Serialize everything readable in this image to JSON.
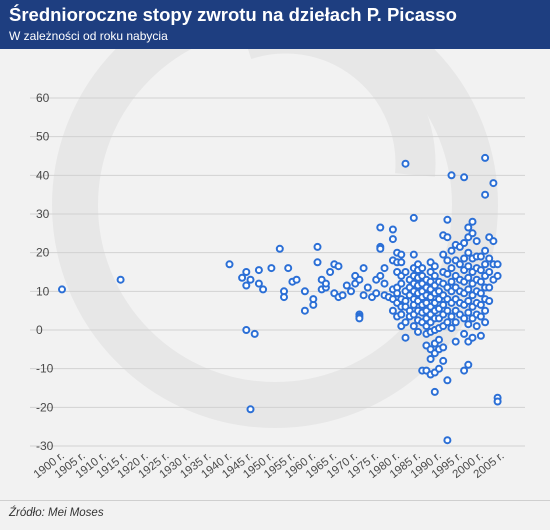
{
  "title": "Średnioroczne stopy zwrotu na dziełach P. Picasso",
  "subtitle": "W zależności od roku nabycia",
  "source": "Źródło: Mei Moses",
  "colors": {
    "header": "#1e3e80",
    "marker": "#2b6fd6",
    "grid": "#d2d2d2",
    "axis_text": "#4a4a4a",
    "watermark": "#e7e7e7"
  },
  "chart_data": {
    "type": "scatter",
    "title": "",
    "xlabel": "",
    "ylabel": "",
    "xlim": [
      1900,
      2006
    ],
    "ylim": [
      -30,
      60
    ],
    "yticks": [
      60,
      50,
      40,
      30,
      20,
      10,
      0,
      -10,
      -20,
      -30
    ],
    "xtick_labels": [
      "1900 r.",
      "1905 r.",
      "1910 r.",
      "1915 r.",
      "1920 r.",
      "1925 r.",
      "1930 r.",
      "1935 r.",
      "1940 r.",
      "1945 r.",
      "1950 r.",
      "1955 r.",
      "1960 r.",
      "1965 r.",
      "1970 r.",
      "1975 r.",
      "1980 r.",
      "1985 r.",
      "1990 r.",
      "1995 r.",
      "2000 r.",
      "2005 r."
    ],
    "xtick_values": [
      1900,
      1905,
      1910,
      1915,
      1920,
      1925,
      1930,
      1935,
      1940,
      1945,
      1950,
      1955,
      1960,
      1965,
      1970,
      1975,
      1980,
      1985,
      1990,
      1995,
      2000,
      2005
    ],
    "grid": "horizontal",
    "points": [
      [
        1900,
        10.5
      ],
      [
        1914,
        13
      ],
      [
        1940,
        17
      ],
      [
        1943,
        13.5
      ],
      [
        1944,
        15
      ],
      [
        1944,
        11.5
      ],
      [
        1944,
        0
      ],
      [
        1945,
        13
      ],
      [
        1945,
        -20.5
      ],
      [
        1946,
        -1
      ],
      [
        1947,
        12
      ],
      [
        1947,
        15.5
      ],
      [
        1948,
        10.5
      ],
      [
        1950,
        16
      ],
      [
        1952,
        21
      ],
      [
        1953,
        10
      ],
      [
        1953,
        8.5
      ],
      [
        1954,
        16
      ],
      [
        1955,
        12.5
      ],
      [
        1956,
        13
      ],
      [
        1958,
        10
      ],
      [
        1958,
        5
      ],
      [
        1960,
        6.5
      ],
      [
        1960,
        8
      ],
      [
        1961,
        21.5
      ],
      [
        1961,
        17.5
      ],
      [
        1962,
        13
      ],
      [
        1962,
        10.5
      ],
      [
        1963,
        11
      ],
      [
        1963,
        12
      ],
      [
        1964,
        15
      ],
      [
        1965,
        9.5
      ],
      [
        1965,
        17
      ],
      [
        1966,
        16.5
      ],
      [
        1966,
        8.5
      ],
      [
        1967,
        9
      ],
      [
        1968,
        11.5
      ],
      [
        1969,
        10
      ],
      [
        1970,
        12
      ],
      [
        1970,
        14
      ],
      [
        1971,
        13
      ],
      [
        1971,
        4
      ],
      [
        1971,
        3.5
      ],
      [
        1971,
        3
      ],
      [
        1972,
        16
      ],
      [
        1972,
        9
      ],
      [
        1973,
        11
      ],
      [
        1974,
        8.5
      ],
      [
        1975,
        13
      ],
      [
        1975,
        9.5
      ],
      [
        1976,
        21.5
      ],
      [
        1976,
        21
      ],
      [
        1976,
        26.5
      ],
      [
        1976,
        14
      ],
      [
        1977,
        12
      ],
      [
        1977,
        16
      ],
      [
        1977,
        9
      ],
      [
        1978,
        8.5
      ],
      [
        1979,
        26
      ],
      [
        1979,
        23.5
      ],
      [
        1979,
        18
      ],
      [
        1979,
        10.5
      ],
      [
        1979,
        8
      ],
      [
        1979,
        5
      ],
      [
        1980,
        20
      ],
      [
        1980,
        17.5
      ],
      [
        1980,
        15
      ],
      [
        1980,
        11
      ],
      [
        1980,
        9.5
      ],
      [
        1980,
        7
      ],
      [
        1980,
        3.5
      ],
      [
        1981,
        19.5
      ],
      [
        1981,
        17.5
      ],
      [
        1981,
        14
      ],
      [
        1981,
        12
      ],
      [
        1981,
        8
      ],
      [
        1981,
        6
      ],
      [
        1981,
        4
      ],
      [
        1981,
        1
      ],
      [
        1982,
        43
      ],
      [
        1982,
        15
      ],
      [
        1982,
        10
      ],
      [
        1982,
        7.5
      ],
      [
        1982,
        6
      ],
      [
        1982,
        -2
      ],
      [
        1982,
        2
      ],
      [
        1983,
        13
      ],
      [
        1983,
        11
      ],
      [
        1983,
        9
      ],
      [
        1983,
        5
      ],
      [
        1983,
        3.5
      ],
      [
        1984,
        29
      ],
      [
        1984,
        19.5
      ],
      [
        1984,
        16
      ],
      [
        1984,
        14
      ],
      [
        1984,
        12
      ],
      [
        1984,
        10
      ],
      [
        1984,
        8
      ],
      [
        1984,
        6.5
      ],
      [
        1984,
        4
      ],
      [
        1984,
        1
      ],
      [
        1985,
        17
      ],
      [
        1985,
        15.5
      ],
      [
        1985,
        13.5
      ],
      [
        1985,
        11.5
      ],
      [
        1985,
        9.5
      ],
      [
        1985,
        7.5
      ],
      [
        1985,
        5
      ],
      [
        1985,
        2.5
      ],
      [
        1985,
        -0.5
      ],
      [
        1986,
        16
      ],
      [
        1986,
        14
      ],
      [
        1986,
        12
      ],
      [
        1986,
        10
      ],
      [
        1986,
        8.5
      ],
      [
        1986,
        6.5
      ],
      [
        1986,
        4.5
      ],
      [
        1986,
        2
      ],
      [
        1986,
        -10.5
      ],
      [
        1987,
        13
      ],
      [
        1987,
        11
      ],
      [
        1987,
        9
      ],
      [
        1987,
        7
      ],
      [
        1987,
        5
      ],
      [
        1987,
        3
      ],
      [
        1987,
        1
      ],
      [
        1987,
        -1
      ],
      [
        1987,
        -4
      ],
      [
        1987,
        -10.5
      ],
      [
        1988,
        17.5
      ],
      [
        1988,
        15
      ],
      [
        1988,
        12.5
      ],
      [
        1988,
        10.5
      ],
      [
        1988,
        8.5
      ],
      [
        1988,
        6
      ],
      [
        1988,
        4
      ],
      [
        1988,
        2
      ],
      [
        1988,
        -0.5
      ],
      [
        1988,
        -5
      ],
      [
        1988,
        -7.5
      ],
      [
        1988,
        -11.5
      ],
      [
        1989,
        16.5
      ],
      [
        1989,
        14
      ],
      [
        1989,
        11.5
      ],
      [
        1989,
        9.5
      ],
      [
        1989,
        7
      ],
      [
        1989,
        5
      ],
      [
        1989,
        3
      ],
      [
        1989,
        0
      ],
      [
        1989,
        -3.5
      ],
      [
        1989,
        -6
      ],
      [
        1989,
        -11
      ],
      [
        1989,
        -16
      ],
      [
        1990,
        12.5
      ],
      [
        1990,
        10
      ],
      [
        1990,
        8
      ],
      [
        1990,
        5.5
      ],
      [
        1990,
        3
      ],
      [
        1990,
        0.5
      ],
      [
        1990,
        -2.5
      ],
      [
        1990,
        -5
      ],
      [
        1990,
        -10
      ],
      [
        1991,
        24.5
      ],
      [
        1991,
        19.5
      ],
      [
        1991,
        15
      ],
      [
        1991,
        12
      ],
      [
        1991,
        9
      ],
      [
        1991,
        6.5
      ],
      [
        1991,
        4
      ],
      [
        1991,
        1
      ],
      [
        1991,
        -4.5
      ],
      [
        1991,
        -8
      ],
      [
        1992,
        28.5
      ],
      [
        1992,
        24
      ],
      [
        1992,
        18
      ],
      [
        1992,
        14.5
      ],
      [
        1992,
        11
      ],
      [
        1992,
        8
      ],
      [
        1992,
        5
      ],
      [
        1992,
        2
      ],
      [
        1992,
        -13
      ],
      [
        1992,
        -28.5
      ],
      [
        1993,
        40
      ],
      [
        1993,
        20.5
      ],
      [
        1993,
        16
      ],
      [
        1993,
        12.5
      ],
      [
        1993,
        10
      ],
      [
        1993,
        7
      ],
      [
        1993,
        3.5
      ],
      [
        1993,
        0.5
      ],
      [
        1994,
        22
      ],
      [
        1994,
        18
      ],
      [
        1994,
        14
      ],
      [
        1994,
        11
      ],
      [
        1994,
        8
      ],
      [
        1994,
        5
      ],
      [
        1994,
        2
      ],
      [
        1994,
        -3
      ],
      [
        1995,
        21.5
      ],
      [
        1995,
        17
      ],
      [
        1995,
        13
      ],
      [
        1995,
        10
      ],
      [
        1995,
        7
      ],
      [
        1995,
        4
      ],
      [
        1996,
        39.5
      ],
      [
        1996,
        22.5
      ],
      [
        1996,
        18.5
      ],
      [
        1996,
        15.5
      ],
      [
        1996,
        12.5
      ],
      [
        1996,
        9.5
      ],
      [
        1996,
        6.5
      ],
      [
        1996,
        3
      ],
      [
        1996,
        -1
      ],
      [
        1996,
        -10.5
      ],
      [
        1997,
        26.5
      ],
      [
        1997,
        24
      ],
      [
        1997,
        20
      ],
      [
        1997,
        16.5
      ],
      [
        1997,
        13.5
      ],
      [
        1997,
        10.5
      ],
      [
        1997,
        7.5
      ],
      [
        1997,
        4.5
      ],
      [
        1997,
        1.5
      ],
      [
        1997,
        -3
      ],
      [
        1997,
        -9
      ],
      [
        1998,
        28
      ],
      [
        1998,
        25
      ],
      [
        1998,
        18.5
      ],
      [
        1998,
        15
      ],
      [
        1998,
        12
      ],
      [
        1998,
        9
      ],
      [
        1998,
        6
      ],
      [
        1998,
        3
      ],
      [
        1998,
        -2
      ],
      [
        1999,
        23
      ],
      [
        1999,
        19
      ],
      [
        1999,
        16
      ],
      [
        1999,
        13
      ],
      [
        1999,
        10
      ],
      [
        1999,
        7
      ],
      [
        1999,
        4
      ],
      [
        1999,
        1
      ],
      [
        2000,
        19
      ],
      [
        2000,
        15.5
      ],
      [
        2000,
        12.5
      ],
      [
        2000,
        9.5
      ],
      [
        2000,
        6.5
      ],
      [
        2000,
        3.5
      ],
      [
        2000,
        -1.5
      ],
      [
        2001,
        44.5
      ],
      [
        2001,
        35
      ],
      [
        2001,
        20.5
      ],
      [
        2001,
        17
      ],
      [
        2001,
        14
      ],
      [
        2001,
        11
      ],
      [
        2001,
        8
      ],
      [
        2001,
        5
      ],
      [
        2001,
        2
      ],
      [
        2002,
        24
      ],
      [
        2002,
        18.5
      ],
      [
        2002,
        15
      ],
      [
        2002,
        11
      ],
      [
        2002,
        7.5
      ],
      [
        2003,
        38
      ],
      [
        2003,
        23
      ],
      [
        2003,
        17
      ],
      [
        2003,
        13
      ],
      [
        2004,
        17
      ],
      [
        2004,
        14
      ],
      [
        2004,
        -17.5
      ],
      [
        2004,
        -18.5
      ]
    ]
  }
}
